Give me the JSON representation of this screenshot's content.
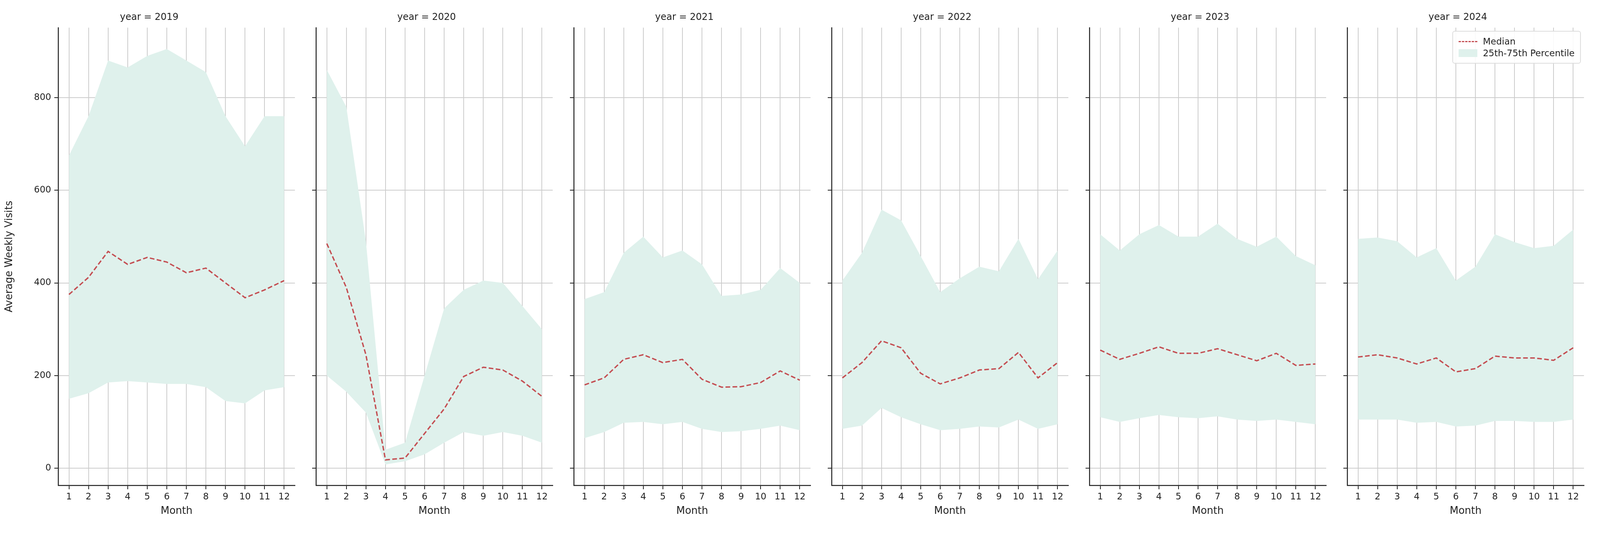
{
  "chart_data": [
    {
      "type": "line",
      "title": "year = 2019",
      "x_label": "Month",
      "y_label": "Average Weekly Visits",
      "x": [
        1,
        2,
        3,
        4,
        5,
        6,
        7,
        8,
        9,
        10,
        11,
        12
      ],
      "xlim": [
        0.45,
        12.55
      ],
      "xticks": [
        1,
        2,
        3,
        4,
        5,
        6,
        7,
        8,
        9,
        10,
        11,
        12
      ],
      "ylim": [
        -37,
        951
      ],
      "yticks": [
        0,
        200,
        400,
        600,
        800
      ],
      "grid": true,
      "series": [
        {
          "name": "Median",
          "type": "line",
          "line_style": "dashed",
          "color": "#c44e52",
          "values": [
            375,
            412,
            468,
            440,
            455,
            445,
            422,
            432,
            400,
            368,
            385,
            405
          ]
        },
        {
          "name": "25th-75th Percentile",
          "type": "band",
          "color": "#dff1ec",
          "lower": [
            150,
            162,
            185,
            188,
            185,
            182,
            182,
            175,
            145,
            140,
            168,
            175
          ],
          "upper": [
            675,
            760,
            880,
            865,
            890,
            905,
            880,
            855,
            760,
            695,
            760,
            760
          ]
        }
      ]
    },
    {
      "type": "line",
      "title": "year = 2020",
      "x_label": "Month",
      "x": [
        1,
        2,
        3,
        4,
        5,
        6,
        7,
        8,
        9,
        10,
        11,
        12
      ],
      "xlim": [
        0.45,
        12.55
      ],
      "xticks": [
        1,
        2,
        3,
        4,
        5,
        6,
        7,
        8,
        9,
        10,
        11,
        12
      ],
      "ylim": [
        -37,
        951
      ],
      "yticks": [
        0,
        200,
        400,
        600,
        800
      ],
      "grid": true,
      "tick_labels": "x",
      "series": [
        {
          "name": "Median",
          "type": "line",
          "line_style": "dashed",
          "color": "#c44e52",
          "values": [
            485,
            390,
            245,
            18,
            22,
            75,
            128,
            198,
            218,
            212,
            188,
            155
          ]
        },
        {
          "name": "25th-75th Percentile",
          "type": "band",
          "color": "#dff1ec",
          "lower": [
            200,
            165,
            120,
            8,
            15,
            30,
            55,
            78,
            70,
            78,
            70,
            55
          ],
          "upper": [
            860,
            780,
            490,
            40,
            55,
            200,
            345,
            385,
            405,
            400,
            350,
            300
          ]
        }
      ]
    },
    {
      "type": "line",
      "title": "year = 2021",
      "x_label": "Month",
      "x": [
        1,
        2,
        3,
        4,
        5,
        6,
        7,
        8,
        9,
        10,
        11,
        12
      ],
      "xlim": [
        0.45,
        12.55
      ],
      "xticks": [
        1,
        2,
        3,
        4,
        5,
        6,
        7,
        8,
        9,
        10,
        11,
        12
      ],
      "ylim": [
        -37,
        951
      ],
      "yticks": [
        0,
        200,
        400,
        600,
        800
      ],
      "grid": true,
      "tick_labels": "x",
      "series": [
        {
          "name": "Median",
          "type": "line",
          "line_style": "dashed",
          "color": "#c44e52",
          "values": [
            180,
            195,
            235,
            245,
            228,
            235,
            192,
            175,
            176,
            185,
            210,
            190
          ]
        },
        {
          "name": "25th-75th Percentile",
          "type": "band",
          "color": "#dff1ec",
          "lower": [
            65,
            78,
            98,
            100,
            95,
            100,
            85,
            78,
            80,
            85,
            92,
            82
          ],
          "upper": [
            365,
            380,
            465,
            500,
            455,
            470,
            440,
            372,
            375,
            385,
            432,
            400
          ]
        }
      ]
    },
    {
      "type": "line",
      "title": "year = 2022",
      "x_label": "Month",
      "x": [
        1,
        2,
        3,
        4,
        5,
        6,
        7,
        8,
        9,
        10,
        11,
        12
      ],
      "xlim": [
        0.45,
        12.55
      ],
      "xticks": [
        1,
        2,
        3,
        4,
        5,
        6,
        7,
        8,
        9,
        10,
        11,
        12
      ],
      "ylim": [
        -37,
        951
      ],
      "yticks": [
        0,
        200,
        400,
        600,
        800
      ],
      "grid": true,
      "tick_labels": "x",
      "series": [
        {
          "name": "Median",
          "type": "line",
          "line_style": "dashed",
          "color": "#c44e52",
          "values": [
            195,
            228,
            275,
            260,
            205,
            182,
            195,
            212,
            215,
            250,
            195,
            228
          ]
        },
        {
          "name": "25th-75th Percentile",
          "type": "band",
          "color": "#dff1ec",
          "lower": [
            85,
            92,
            130,
            110,
            95,
            82,
            85,
            90,
            88,
            105,
            85,
            95
          ],
          "upper": [
            405,
            465,
            558,
            535,
            458,
            380,
            410,
            435,
            425,
            495,
            408,
            470
          ]
        }
      ]
    },
    {
      "type": "line",
      "title": "year = 2023",
      "x_label": "Month",
      "x": [
        1,
        2,
        3,
        4,
        5,
        6,
        7,
        8,
        9,
        10,
        11,
        12
      ],
      "xlim": [
        0.45,
        12.55
      ],
      "xticks": [
        1,
        2,
        3,
        4,
        5,
        6,
        7,
        8,
        9,
        10,
        11,
        12
      ],
      "ylim": [
        -37,
        951
      ],
      "yticks": [
        0,
        200,
        400,
        600,
        800
      ],
      "grid": true,
      "tick_labels": "x",
      "series": [
        {
          "name": "Median",
          "type": "line",
          "line_style": "dashed",
          "color": "#c44e52",
          "values": [
            255,
            235,
            248,
            262,
            248,
            248,
            258,
            245,
            232,
            248,
            222,
            225
          ]
        },
        {
          "name": "25th-75th Percentile",
          "type": "band",
          "color": "#dff1ec",
          "lower": [
            110,
            100,
            108,
            115,
            110,
            108,
            112,
            105,
            102,
            105,
            100,
            95
          ],
          "upper": [
            505,
            470,
            505,
            525,
            500,
            500,
            528,
            495,
            478,
            500,
            458,
            438
          ]
        }
      ]
    },
    {
      "type": "line",
      "title": "year = 2024",
      "x_label": "Month",
      "x": [
        1,
        2,
        3,
        4,
        5,
        6,
        7,
        8,
        9,
        10,
        11,
        12
      ],
      "xlim": [
        0.45,
        12.55
      ],
      "xticks": [
        1,
        2,
        3,
        4,
        5,
        6,
        7,
        8,
        9,
        10,
        11,
        12
      ],
      "ylim": [
        -37,
        951
      ],
      "yticks": [
        0,
        200,
        400,
        600,
        800
      ],
      "grid": true,
      "tick_labels": "x",
      "legend": "upper right",
      "series": [
        {
          "name": "Median",
          "type": "line",
          "line_style": "dashed",
          "color": "#c44e52",
          "values": [
            240,
            245,
            238,
            225,
            238,
            208,
            215,
            242,
            238,
            238,
            233,
            260
          ]
        },
        {
          "name": "25th-75th Percentile",
          "type": "band",
          "color": "#dff1ec",
          "lower": [
            105,
            105,
            105,
            98,
            100,
            90,
            92,
            102,
            102,
            100,
            100,
            105
          ],
          "upper": [
            495,
            498,
            490,
            455,
            475,
            405,
            435,
            505,
            488,
            475,
            480,
            515
          ]
        }
      ]
    }
  ]
}
